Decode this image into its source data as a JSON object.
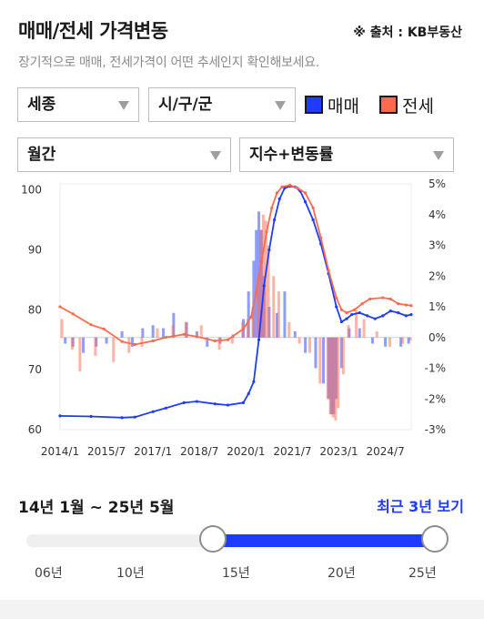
{
  "header": {
    "title": "매매/전세 가격변동",
    "source": "※ 출처 : KB부동산",
    "subtitle": "장기적으로 매매, 전세가격이 어떤 추세인지 확인해보세요."
  },
  "filters": {
    "region": "세종",
    "district": "시/구/군",
    "period": "월간",
    "metric": "지수+변동률"
  },
  "legend": {
    "sale": "매매",
    "jeonse": "전세"
  },
  "colors": {
    "sale": "#1e3cff",
    "jeonse": "#ff6a4d",
    "accent": "#1e3cff"
  },
  "icons": {
    "dropdown": "chevron-down-icon"
  },
  "chart_data": {
    "type": "line",
    "x_range": [
      "2014-01",
      "2025-05"
    ],
    "x_ticks": [
      "2014/1",
      "2015/7",
      "2017/1",
      "2018/7",
      "2020/1",
      "2021/7",
      "2023/1",
      "2024/7"
    ],
    "y_left": {
      "ticks": [
        "60",
        "70",
        "80",
        "90",
        "100"
      ],
      "range": [
        60,
        101
      ]
    },
    "y_right": {
      "ticks": [
        "-3%",
        "-2%",
        "-1%",
        "0%",
        "1%",
        "2%",
        "3%",
        "4%",
        "5%"
      ],
      "range": [
        -3,
        5
      ]
    },
    "grid": false,
    "series": [
      {
        "name": "매매",
        "kind": "index-line",
        "points": [
          [
            "2014-01",
            62.3
          ],
          [
            "2015-01",
            62.2
          ],
          [
            "2016-01",
            62.0
          ],
          [
            "2016-06",
            62.1
          ],
          [
            "2017-01",
            63.0
          ],
          [
            "2017-06",
            63.6
          ],
          [
            "2018-01",
            64.5
          ],
          [
            "2018-06",
            64.7
          ],
          [
            "2019-01",
            64.3
          ],
          [
            "2019-06",
            64.1
          ],
          [
            "2019-12",
            64.5
          ],
          [
            "2020-02",
            66.0
          ],
          [
            "2020-04",
            68.0
          ],
          [
            "2020-06",
            75.0
          ],
          [
            "2020-08",
            84.0
          ],
          [
            "2020-10",
            90.0
          ],
          [
            "2020-12",
            95.0
          ],
          [
            "2021-02",
            98.5
          ],
          [
            "2021-04",
            100.3
          ],
          [
            "2021-06",
            100.6
          ],
          [
            "2021-08",
            100.5
          ],
          [
            "2021-10",
            99.8
          ],
          [
            "2021-12",
            98.0
          ],
          [
            "2022-03",
            95.0
          ],
          [
            "2022-06",
            91.0
          ],
          [
            "2022-09",
            86.0
          ],
          [
            "2022-12",
            80.5
          ],
          [
            "2023-02",
            78.0
          ],
          [
            "2023-04",
            78.5
          ],
          [
            "2023-06",
            79.2
          ],
          [
            "2023-09",
            79.5
          ],
          [
            "2023-12",
            79.0
          ],
          [
            "2024-03",
            78.5
          ],
          [
            "2024-06",
            79.0
          ],
          [
            "2024-09",
            79.8
          ],
          [
            "2024-12",
            79.5
          ],
          [
            "2025-03",
            79.0
          ],
          [
            "2025-05",
            79.2
          ]
        ]
      },
      {
        "name": "전세",
        "kind": "index-line",
        "points": [
          [
            "2014-01",
            80.5
          ],
          [
            "2014-06",
            79.3
          ],
          [
            "2015-01",
            77.5
          ],
          [
            "2015-06",
            76.8
          ],
          [
            "2016-01",
            74.7
          ],
          [
            "2016-06",
            74.2
          ],
          [
            "2017-01",
            74.8
          ],
          [
            "2017-06",
            75.4
          ],
          [
            "2018-01",
            75.9
          ],
          [
            "2018-06",
            75.5
          ],
          [
            "2019-01",
            74.8
          ],
          [
            "2019-06",
            75.0
          ],
          [
            "2019-12",
            76.8
          ],
          [
            "2020-03",
            78.8
          ],
          [
            "2020-05",
            83.0
          ],
          [
            "2020-07",
            88.0
          ],
          [
            "2020-09",
            93.0
          ],
          [
            "2020-11",
            97.0
          ],
          [
            "2021-01",
            99.5
          ],
          [
            "2021-03",
            100.5
          ],
          [
            "2021-06",
            100.8
          ],
          [
            "2021-09",
            100.3
          ],
          [
            "2021-12",
            99.5
          ],
          [
            "2022-03",
            97.0
          ],
          [
            "2022-06",
            92.0
          ],
          [
            "2022-09",
            86.5
          ],
          [
            "2022-12",
            82.0
          ],
          [
            "2023-02",
            80.0
          ],
          [
            "2023-04",
            79.5
          ],
          [
            "2023-07",
            80.0
          ],
          [
            "2023-10",
            81.0
          ],
          [
            "2024-01",
            81.8
          ],
          [
            "2024-06",
            82.0
          ],
          [
            "2024-09",
            81.8
          ],
          [
            "2024-12",
            81.0
          ],
          [
            "2025-03",
            80.8
          ],
          [
            "2025-05",
            80.7
          ]
        ]
      },
      {
        "name": "매매",
        "kind": "change-bars",
        "unit": "%",
        "points": [
          [
            "2014-03",
            -0.2
          ],
          [
            "2014-06",
            -0.3
          ],
          [
            "2014-10",
            -0.5
          ],
          [
            "2015-03",
            -0.3
          ],
          [
            "2015-07",
            -0.2
          ],
          [
            "2016-01",
            0.2
          ],
          [
            "2016-05",
            -0.3
          ],
          [
            "2016-09",
            0.3
          ],
          [
            "2017-01",
            0.4
          ],
          [
            "2017-05",
            0.3
          ],
          [
            "2017-09",
            0.8
          ],
          [
            "2018-02",
            0.5
          ],
          [
            "2018-06",
            0.2
          ],
          [
            "2018-10",
            -0.3
          ],
          [
            "2019-03",
            -0.2
          ],
          [
            "2019-08",
            0.1
          ],
          [
            "2019-12",
            0.6
          ],
          [
            "2020-02",
            1.5
          ],
          [
            "2020-04",
            2.5
          ],
          [
            "2020-05",
            3.5
          ],
          [
            "2020-06",
            4.1
          ],
          [
            "2020-07",
            3.5
          ],
          [
            "2020-08",
            2.0
          ],
          [
            "2020-10",
            1.0
          ],
          [
            "2021-01",
            0.8
          ],
          [
            "2021-04",
            1.5
          ],
          [
            "2021-08",
            0.2
          ],
          [
            "2021-12",
            -0.5
          ],
          [
            "2022-04",
            -1.0
          ],
          [
            "2022-07",
            -1.5
          ],
          [
            "2022-09",
            -2.0
          ],
          [
            "2022-10",
            -2.5
          ],
          [
            "2022-11",
            -2.5
          ],
          [
            "2022-12",
            -2.0
          ],
          [
            "2023-02",
            -1.0
          ],
          [
            "2023-05",
            0.3
          ],
          [
            "2023-09",
            0.3
          ],
          [
            "2024-02",
            -0.2
          ],
          [
            "2024-07",
            -0.3
          ],
          [
            "2025-01",
            -0.3
          ],
          [
            "2025-04",
            -0.2
          ]
        ]
      },
      {
        "name": "전세",
        "kind": "change-bars",
        "unit": "%",
        "points": [
          [
            "2014-01",
            0.6
          ],
          [
            "2014-05",
            -0.4
          ],
          [
            "2014-08",
            -1.1
          ],
          [
            "2015-02",
            -0.6
          ],
          [
            "2015-09",
            -0.8
          ],
          [
            "2016-03",
            -0.5
          ],
          [
            "2016-08",
            -0.3
          ],
          [
            "2017-02",
            0.3
          ],
          [
            "2017-08",
            0.4
          ],
          [
            "2018-01",
            0.5
          ],
          [
            "2018-07",
            0.4
          ],
          [
            "2019-02",
            -0.4
          ],
          [
            "2019-07",
            -0.2
          ],
          [
            "2019-11",
            0.5
          ],
          [
            "2020-01",
            0.6
          ],
          [
            "2020-03",
            1.0
          ],
          [
            "2020-05",
            2.0
          ],
          [
            "2020-06",
            3.5
          ],
          [
            "2020-07",
            4.0
          ],
          [
            "2020-08",
            3.8
          ],
          [
            "2020-09",
            3.0
          ],
          [
            "2020-11",
            2.0
          ],
          [
            "2021-01",
            1.5
          ],
          [
            "2021-05",
            0.5
          ],
          [
            "2021-09",
            -0.2
          ],
          [
            "2022-01",
            -0.5
          ],
          [
            "2022-05",
            -1.5
          ],
          [
            "2022-08",
            -2.0
          ],
          [
            "2022-09",
            -2.5
          ],
          [
            "2022-10",
            -2.6
          ],
          [
            "2022-11",
            -2.7
          ],
          [
            "2022-12",
            -2.3
          ],
          [
            "2023-02",
            -1.2
          ],
          [
            "2023-04",
            0.4
          ],
          [
            "2023-07",
            0.9
          ],
          [
            "2023-10",
            0.6
          ],
          [
            "2024-03",
            0.2
          ],
          [
            "2024-08",
            -0.3
          ],
          [
            "2025-01",
            -0.2
          ],
          [
            "2025-04",
            -0.1
          ]
        ]
      }
    ]
  },
  "range": {
    "label": "14년 1월 ~ 25년 5월",
    "recent_button": "최근 3년 보기",
    "slider": {
      "min": 2006,
      "max": 2025,
      "from": 2014,
      "to": 2025
    },
    "year_labels": [
      "06년",
      "10년",
      "15년",
      "20년",
      "25년"
    ]
  }
}
